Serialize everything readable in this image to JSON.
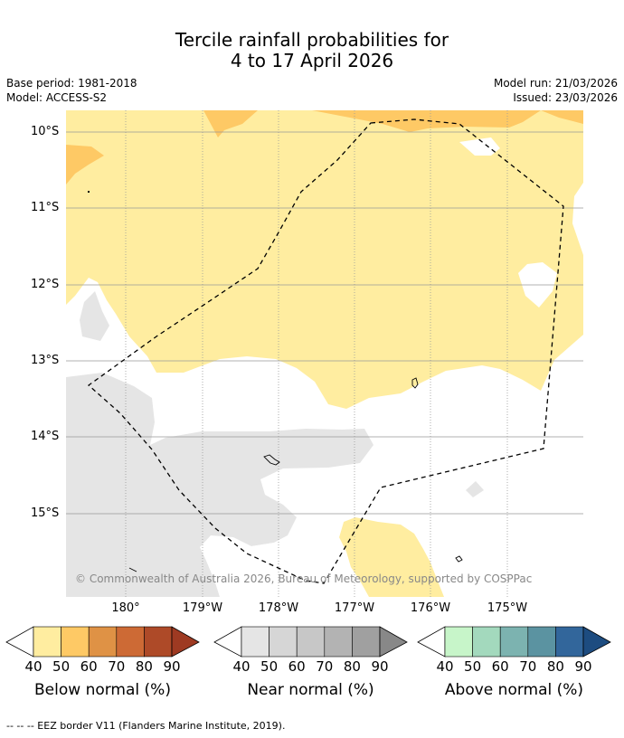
{
  "title": {
    "line1": "Tercile rainfall probabilities for",
    "line2": "4 to 17 April 2026"
  },
  "meta": {
    "base_period": "Base period: 1981-2018",
    "model": "Model: ACCESS-S2",
    "model_run": "Model run: 21/03/2026",
    "issued": "Issued: 23/03/2026"
  },
  "map": {
    "lat_labels": [
      "10°S",
      "11°S",
      "12°S",
      "13°S",
      "14°S",
      "15°S"
    ],
    "lon_labels": [
      "180°",
      "179°W",
      "178°W",
      "177°W",
      "176°W",
      "175°W"
    ],
    "copyright": "© Commonwealth of Australia 2026, Bureau of Meteorology, supported by COSPPac",
    "colors": {
      "below_40": "#ffeda0",
      "below_50": "#fec965",
      "near_40": "#e5e5e5"
    }
  },
  "colorbars": [
    {
      "title": "Below normal (%)",
      "ticks": [
        "40",
        "50",
        "60",
        "70",
        "80",
        "90"
      ],
      "colors": [
        "#ffeda0",
        "#fec965",
        "#df9245",
        "#cd6a35",
        "#ae4a28",
        "#9e3a22"
      ]
    },
    {
      "title": "Near normal (%)",
      "ticks": [
        "40",
        "50",
        "60",
        "70",
        "80",
        "90"
      ],
      "colors": [
        "#e5e5e5",
        "#d6d6d6",
        "#c7c7c7",
        "#b3b3b3",
        "#a0a0a0",
        "#888888"
      ]
    },
    {
      "title": "Above normal (%)",
      "ticks": [
        "40",
        "50",
        "60",
        "70",
        "80",
        "90"
      ],
      "colors": [
        "#c7f5c9",
        "#a3d9bd",
        "#7cb3b0",
        "#5b93a1",
        "#32669b",
        "#1d4c80"
      ]
    }
  ],
  "footnote": "--  --  -- EEZ border V11 (Flanders Marine Institute, 2019)."
}
